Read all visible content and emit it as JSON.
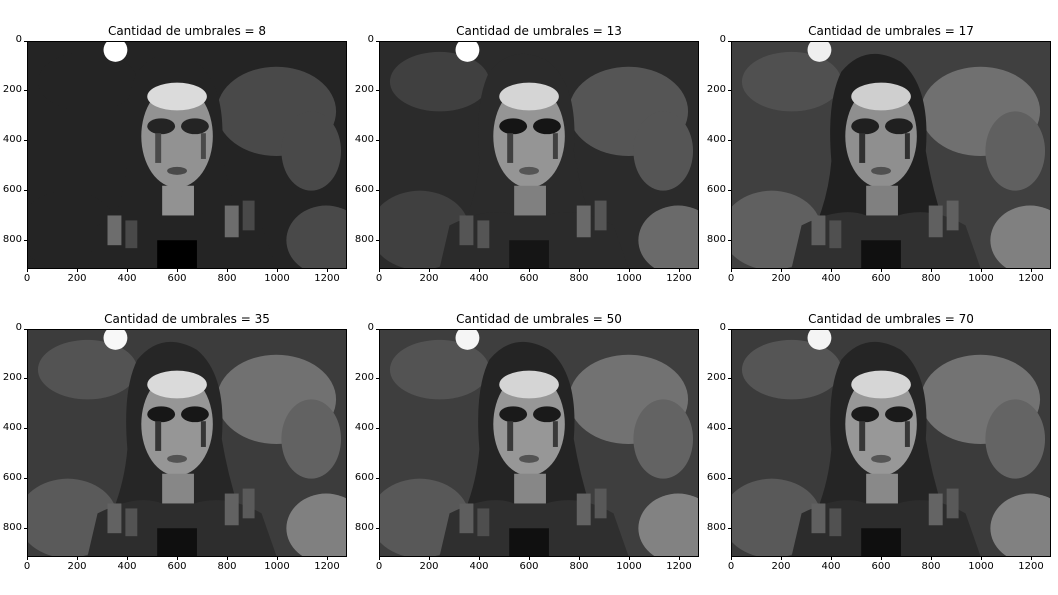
{
  "figure": {
    "panels": [
      {
        "title": "Cantidad de umbrales = 8",
        "levels": 8
      },
      {
        "title": "Cantidad de umbrales = 13",
        "levels": 13
      },
      {
        "title": "Cantidad de umbrales = 17",
        "levels": 17
      },
      {
        "title": "Cantidad de umbrales = 35",
        "levels": 35
      },
      {
        "title": "Cantidad de umbrales = 50",
        "levels": 50
      },
      {
        "title": "Cantidad de umbrales = 70",
        "levels": 70
      }
    ],
    "x_ticks": [
      "0",
      "200",
      "400",
      "600",
      "800",
      "1000",
      "1200"
    ],
    "y_ticks": [
      "0",
      "200",
      "400",
      "600",
      "800"
    ]
  }
}
